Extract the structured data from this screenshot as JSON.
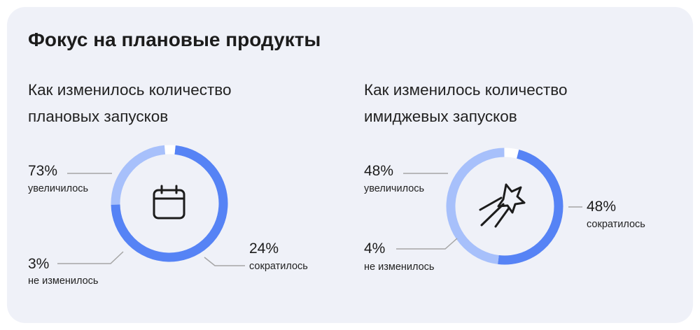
{
  "title": "Фокус на плановые продукты",
  "colors": {
    "increased": "#5683f5",
    "decreased": "#a7c0fb",
    "unchanged": "#ffffff",
    "leader": "#a5a5a5",
    "background": "#eff1f8"
  },
  "chart_data": [
    {
      "type": "pie",
      "style": "donut",
      "title": "Как изменилось количество плановых запусков",
      "center_icon": "calendar-icon",
      "slices": [
        {
          "label": "увеличилось",
          "value": 73,
          "display": "73%"
        },
        {
          "label": "сократилось",
          "value": 24,
          "display": "24%"
        },
        {
          "label": "не изменилось",
          "value": 3,
          "display": "3%"
        }
      ]
    },
    {
      "type": "pie",
      "style": "donut",
      "title": "Как изменилось количество имиджевых запусков",
      "center_icon": "shooting-star-icon",
      "slices": [
        {
          "label": "увеличилось",
          "value": 48,
          "display": "48%"
        },
        {
          "label": "сократилось",
          "value": 48,
          "display": "48%"
        },
        {
          "label": "не изменилось",
          "value": 4,
          "display": "4%"
        }
      ]
    }
  ]
}
